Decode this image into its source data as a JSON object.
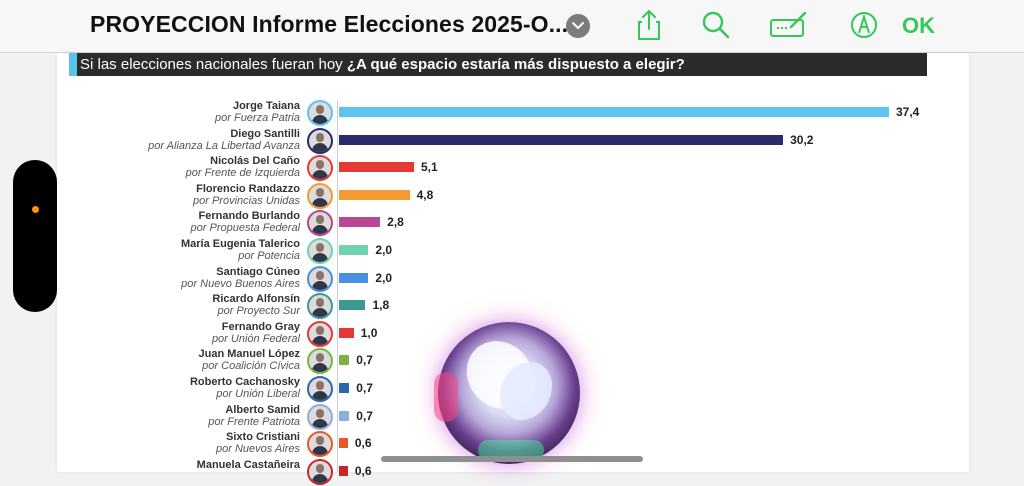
{
  "toolbar": {
    "title": "PROYECCION Informe Elecciones 2025-O...",
    "ok_label": "OK",
    "icons": [
      "chevron-down-icon",
      "share-icon",
      "search-icon",
      "markup-pen-icon",
      "pencil-tip-icon"
    ]
  },
  "chart_data": {
    "type": "bar",
    "orientation": "horizontal",
    "title_plain": "Si las elecciones nacionales fueran hoy",
    "title_bold": "¿A qué espacio estaría más dispuesto a elegir?",
    "categories": [
      "Jorge Taiana",
      "Diego Santilli",
      "Nicolás Del Caño",
      "Florencio Randazzo",
      "Fernando Burlando",
      "María Eugenia Talerico",
      "Santiago Cúneo",
      "Ricardo Alfonsín",
      "Fernando Gray",
      "Juan Manuel López",
      "Roberto Cachanosky",
      "Alberto Samid",
      "Sixto Cristiani",
      "Manuela Castañeira"
    ],
    "parties": [
      "por Fuerza Patria",
      "por Alianza La Libertad Avanza",
      "por Frente de Izquierda",
      "por Provincias Unidas",
      "por Propuesta Federal",
      "por Potencia",
      "por Nuevo Buenos Aires",
      "por Proyecto Sur",
      "por Unión Federal",
      "por Coalición Cívica",
      "por Unión Liberal",
      "por Frente Patriota",
      "por Nuevos Aires",
      ""
    ],
    "values": [
      37.4,
      30.2,
      5.1,
      4.8,
      2.8,
      2.0,
      2.0,
      1.8,
      1.0,
      0.7,
      0.7,
      0.7,
      0.6,
      0.6
    ],
    "value_labels": [
      "37,4",
      "30,2",
      "5,1",
      "4,8",
      "2,8",
      "2,0",
      "2,0",
      "1,8",
      "1,0",
      "0,7",
      "0,7",
      "0,7",
      "0,6",
      "0,6"
    ],
    "colors": [
      "#5bc4f1",
      "#2a2a6e",
      "#e53935",
      "#f09c33",
      "#b84893",
      "#6fd3b0",
      "#4a90e2",
      "#3a9a92",
      "#e53935",
      "#7cb342",
      "#2a67b1",
      "#8eaee0",
      "#e8572a",
      "#c62828"
    ],
    "xlim": [
      0,
      37.4
    ]
  }
}
